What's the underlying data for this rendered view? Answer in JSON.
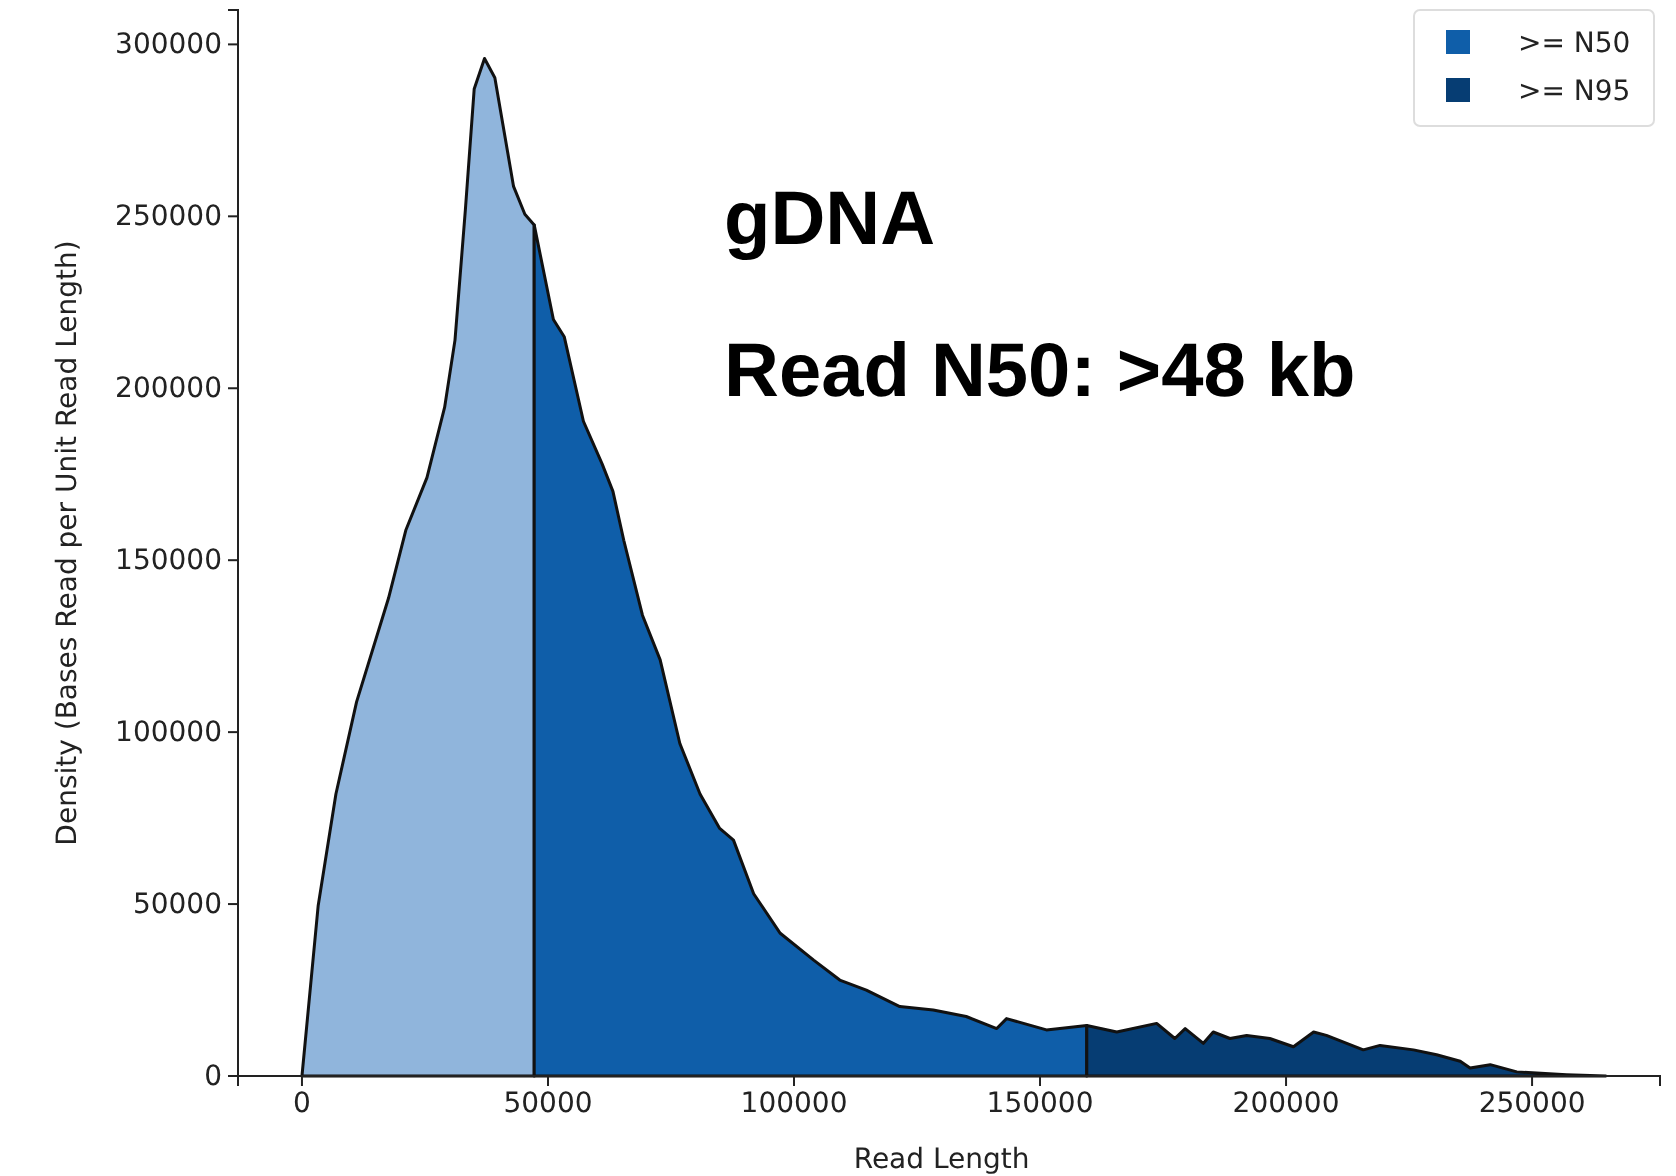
{
  "chart_data": {
    "type": "area",
    "xlabel": "Read Length",
    "ylabel": "Density (Bases Read per Unit Read Length)",
    "annotations": [
      "gDNA",
      "Read N50: >48 kb"
    ],
    "xlim": [
      -13000,
      276000
    ],
    "ylim": [
      0,
      310000
    ],
    "xticks": [
      0,
      50000,
      100000,
      150000,
      200000,
      250000
    ],
    "yticks": [
      0,
      50000,
      100000,
      150000,
      200000,
      250000,
      300000
    ],
    "grid": false,
    "legend": "top right",
    "series": [
      {
        "color": "#90b5dc",
        "x": [
          0,
          3300,
          6900,
          11100,
          17600,
          21100,
          25400,
          29000,
          31100,
          33200,
          35000,
          37100,
          39200,
          43000,
          45300,
          47200
        ],
        "values": [
          0,
          49600,
          82000,
          108800,
          139000,
          158700,
          174000,
          194500,
          214000,
          251700,
          287000,
          295900,
          290300,
          258700,
          250600,
          247500
        ]
      },
      {
        "name": ">= N50",
        "color": "#0f5ea9",
        "x": [
          47200,
          51100,
          53300,
          57200,
          61000,
          63200,
          65400,
          69200,
          72800,
          76800,
          80900,
          84900,
          87700,
          91800,
          97200,
          104000,
          109300,
          114700,
          121500,
          128300,
          135000,
          141200,
          143200,
          151300,
          159500
        ],
        "values": [
          247500,
          220000,
          215000,
          190400,
          178000,
          170000,
          155800,
          134000,
          121000,
          96700,
          82000,
          72000,
          68600,
          53000,
          41500,
          33700,
          27900,
          25000,
          20200,
          19200,
          17300,
          13800,
          16700,
          13400,
          14700
        ]
      },
      {
        "name": ">= N95",
        "color": "#063d73",
        "x": [
          159500,
          165600,
          173700,
          177400,
          179500,
          183200,
          185200,
          188600,
          192000,
          196700,
          201500,
          205600,
          208200,
          215700,
          219100,
          225900,
          230600,
          235400,
          237400,
          241500,
          246900,
          257000,
          265000
        ],
        "values": [
          14700,
          12800,
          15300,
          10900,
          13800,
          9500,
          12800,
          10900,
          11800,
          10900,
          8500,
          12800,
          11800,
          7600,
          8900,
          7600,
          6200,
          4300,
          2300,
          3300,
          1200,
          400,
          0
        ]
      }
    ]
  }
}
